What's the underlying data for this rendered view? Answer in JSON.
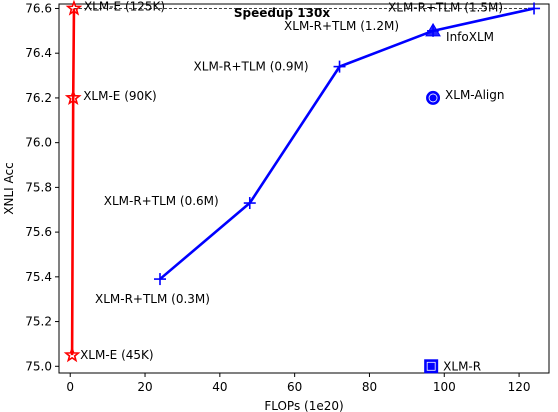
{
  "chart_data": {
    "type": "line",
    "xlabel": "FLOPs (1e20)",
    "ylabel": "XNLI Acc",
    "xlim": [
      -3,
      128
    ],
    "ylim": [
      74.97,
      76.62
    ],
    "xticks": [
      0,
      20,
      40,
      60,
      80,
      100,
      120
    ],
    "yticks": [
      75.0,
      75.2,
      75.4,
      75.6,
      75.8,
      76.0,
      76.2,
      76.4,
      76.6
    ],
    "xtick_labels": [
      "0",
      "20",
      "40",
      "60",
      "80",
      "100",
      "120"
    ],
    "ytick_labels": [
      "75.0",
      "75.2",
      "75.4",
      "75.6",
      "75.8",
      "76.0",
      "76.2",
      "76.4",
      "76.6"
    ],
    "grid": false,
    "series": [
      {
        "name": "XLM-E",
        "color": "#ff0000",
        "marker": "star",
        "points": [
          {
            "x": 0.5,
            "y": 75.05,
            "label": "XLM-E (45K)"
          },
          {
            "x": 0.8,
            "y": 76.2,
            "label": "XLM-E (90K)"
          },
          {
            "x": 1.0,
            "y": 76.6,
            "label": "XLM-E (125K)"
          }
        ]
      },
      {
        "name": "XLM-R+TLM",
        "color": "#0000ff",
        "marker": "plus",
        "points": [
          {
            "x": 24,
            "y": 75.39,
            "label": "XLM-R+TLM (0.3M)"
          },
          {
            "x": 48,
            "y": 75.73,
            "label": "XLM-R+TLM (0.6M)"
          },
          {
            "x": 72,
            "y": 76.34,
            "label": "XLM-R+TLM (0.9M)"
          },
          {
            "x": 97,
            "y": 76.5,
            "label": "XLM-R+TLM (1.2M)"
          },
          {
            "x": 124,
            "y": 76.6,
            "label": "XLM-R+TLM (1.5M)"
          }
        ]
      }
    ],
    "single_points": [
      {
        "name": "InfoXLM",
        "x": 97,
        "y": 76.5,
        "marker": "triangle",
        "color": "#0000ff"
      },
      {
        "name": "XLM-Align",
        "x": 97,
        "y": 76.2,
        "marker": "circle",
        "color": "#0000ff"
      },
      {
        "name": "XLM-R",
        "x": 96.5,
        "y": 75.0,
        "marker": "square",
        "color": "#0000ff"
      }
    ],
    "reference_line": {
      "y": 76.6,
      "x_from": 1.0,
      "x_to": 124,
      "style": "dashed",
      "color": "#000000"
    },
    "annotation": {
      "text": "Speedup 130x"
    }
  }
}
